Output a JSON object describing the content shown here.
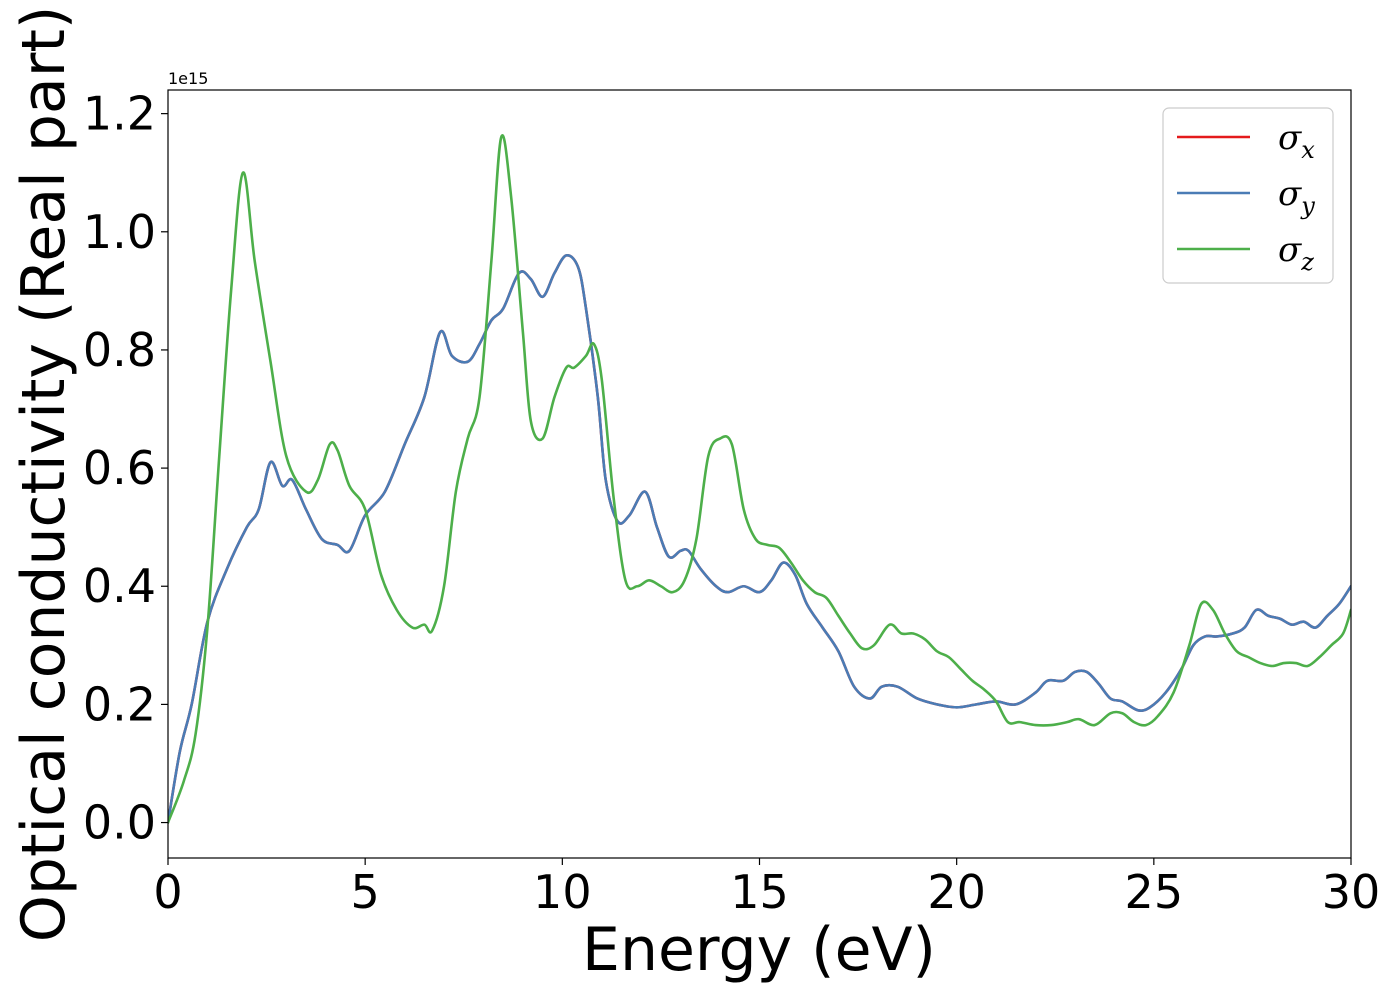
{
  "chart_data": {
    "type": "line",
    "xlabel": "Energy (eV)",
    "ylabel": "Optical conductivity (Real part)",
    "y_offset_text": "1e15",
    "xlim": [
      0,
      30
    ],
    "ylim": [
      -0.06,
      1.24
    ],
    "x_ticks": [
      0,
      5,
      10,
      15,
      20,
      25,
      30
    ],
    "x_tick_labels": [
      "0",
      "5",
      "10",
      "15",
      "20",
      "25",
      "30"
    ],
    "y_ticks": [
      0.0,
      0.2,
      0.4,
      0.6,
      0.8,
      1.0,
      1.2
    ],
    "y_tick_labels": [
      "0.0",
      "0.2",
      "0.4",
      "0.6",
      "0.8",
      "1.0",
      "1.2"
    ],
    "grid": false,
    "legend_position": "top-right",
    "series": [
      {
        "name": "σx",
        "legend_symbol": "σ",
        "legend_sub": "x",
        "color": "#e41a1c",
        "x": [
          0,
          0.3,
          0.6,
          1.0,
          1.5,
          2.0,
          2.3,
          2.6,
          2.9,
          3.15,
          3.5,
          3.9,
          4.3,
          4.6,
          5.0,
          5.5,
          6.0,
          6.5,
          6.9,
          7.2,
          7.6,
          7.9,
          8.2,
          8.5,
          8.9,
          9.2,
          9.5,
          9.8,
          10.1,
          10.4,
          10.6,
          10.9,
          11.1,
          11.4,
          11.7,
          12.1,
          12.4,
          12.7,
          13.0,
          13.2,
          13.5,
          13.9,
          14.2,
          14.6,
          15.0,
          15.3,
          15.6,
          15.9,
          16.2,
          16.6,
          17.0,
          17.4,
          17.8,
          18.1,
          18.5,
          19.0,
          19.5,
          20.0,
          20.5,
          21.0,
          21.5,
          22.0,
          22.3,
          22.7,
          23.0,
          23.3,
          23.6,
          23.9,
          24.2,
          24.6,
          24.9,
          25.3,
          25.7,
          26.0,
          26.3,
          26.6,
          27.0,
          27.3,
          27.6,
          27.9,
          28.2,
          28.5,
          28.8,
          29.1,
          29.4,
          29.7,
          30.0
        ],
        "values": [
          0.0,
          0.12,
          0.2,
          0.34,
          0.43,
          0.5,
          0.53,
          0.61,
          0.57,
          0.58,
          0.53,
          0.48,
          0.47,
          0.46,
          0.52,
          0.56,
          0.64,
          0.72,
          0.83,
          0.79,
          0.78,
          0.81,
          0.85,
          0.87,
          0.93,
          0.92,
          0.89,
          0.93,
          0.96,
          0.94,
          0.87,
          0.72,
          0.58,
          0.51,
          0.52,
          0.56,
          0.5,
          0.45,
          0.46,
          0.46,
          0.43,
          0.4,
          0.39,
          0.4,
          0.39,
          0.41,
          0.44,
          0.42,
          0.37,
          0.33,
          0.29,
          0.23,
          0.21,
          0.23,
          0.23,
          0.21,
          0.2,
          0.195,
          0.2,
          0.205,
          0.2,
          0.22,
          0.24,
          0.24,
          0.255,
          0.255,
          0.235,
          0.21,
          0.205,
          0.19,
          0.195,
          0.22,
          0.26,
          0.3,
          0.315,
          0.315,
          0.32,
          0.33,
          0.36,
          0.35,
          0.345,
          0.335,
          0.34,
          0.33,
          0.35,
          0.37,
          0.4
        ]
      },
      {
        "name": "σy",
        "legend_symbol": "σ",
        "legend_sub": "y",
        "color": "#4a7cb5",
        "x": [
          0,
          0.3,
          0.6,
          1.0,
          1.5,
          2.0,
          2.3,
          2.6,
          2.9,
          3.15,
          3.5,
          3.9,
          4.3,
          4.6,
          5.0,
          5.5,
          6.0,
          6.5,
          6.9,
          7.2,
          7.6,
          7.9,
          8.2,
          8.5,
          8.9,
          9.2,
          9.5,
          9.8,
          10.1,
          10.4,
          10.6,
          10.9,
          11.1,
          11.4,
          11.7,
          12.1,
          12.4,
          12.7,
          13.0,
          13.2,
          13.5,
          13.9,
          14.2,
          14.6,
          15.0,
          15.3,
          15.6,
          15.9,
          16.2,
          16.6,
          17.0,
          17.4,
          17.8,
          18.1,
          18.5,
          19.0,
          19.5,
          20.0,
          20.5,
          21.0,
          21.5,
          22.0,
          22.3,
          22.7,
          23.0,
          23.3,
          23.6,
          23.9,
          24.2,
          24.6,
          24.9,
          25.3,
          25.7,
          26.0,
          26.3,
          26.6,
          27.0,
          27.3,
          27.6,
          27.9,
          28.2,
          28.5,
          28.8,
          29.1,
          29.4,
          29.7,
          30.0
        ],
        "values": [
          0.0,
          0.12,
          0.2,
          0.34,
          0.43,
          0.5,
          0.53,
          0.61,
          0.57,
          0.58,
          0.53,
          0.48,
          0.47,
          0.46,
          0.52,
          0.56,
          0.64,
          0.72,
          0.83,
          0.79,
          0.78,
          0.81,
          0.85,
          0.87,
          0.93,
          0.92,
          0.89,
          0.93,
          0.96,
          0.94,
          0.87,
          0.72,
          0.58,
          0.51,
          0.52,
          0.56,
          0.5,
          0.45,
          0.46,
          0.46,
          0.43,
          0.4,
          0.39,
          0.4,
          0.39,
          0.41,
          0.44,
          0.42,
          0.37,
          0.33,
          0.29,
          0.23,
          0.21,
          0.23,
          0.23,
          0.21,
          0.2,
          0.195,
          0.2,
          0.205,
          0.2,
          0.22,
          0.24,
          0.24,
          0.255,
          0.255,
          0.235,
          0.21,
          0.205,
          0.19,
          0.195,
          0.22,
          0.26,
          0.3,
          0.315,
          0.315,
          0.32,
          0.33,
          0.36,
          0.35,
          0.345,
          0.335,
          0.34,
          0.33,
          0.35,
          0.37,
          0.4
        ]
      },
      {
        "name": "σz",
        "legend_symbol": "σ",
        "legend_sub": "z",
        "color": "#4daf4a",
        "x": [
          0,
          0.4,
          0.7,
          1.0,
          1.3,
          1.6,
          1.9,
          2.2,
          2.6,
          3.0,
          3.5,
          3.8,
          4.1,
          4.3,
          4.6,
          5.0,
          5.4,
          5.8,
          6.2,
          6.5,
          6.7,
          7.0,
          7.3,
          7.6,
          7.9,
          8.2,
          8.45,
          8.7,
          9.0,
          9.2,
          9.5,
          9.8,
          10.1,
          10.3,
          10.6,
          10.8,
          11.0,
          11.3,
          11.6,
          11.9,
          12.2,
          12.5,
          12.8,
          13.1,
          13.4,
          13.7,
          14.0,
          14.3,
          14.6,
          14.9,
          15.2,
          15.5,
          15.8,
          16.1,
          16.4,
          16.7,
          17.0,
          17.3,
          17.6,
          17.9,
          18.3,
          18.6,
          18.9,
          19.2,
          19.5,
          19.8,
          20.1,
          20.4,
          20.7,
          21.0,
          21.3,
          21.6,
          22.0,
          22.4,
          22.8,
          23.1,
          23.5,
          23.9,
          24.2,
          24.5,
          24.8,
          25.1,
          25.5,
          25.9,
          26.2,
          26.5,
          26.8,
          27.1,
          27.4,
          27.7,
          28.0,
          28.3,
          28.6,
          28.9,
          29.2,
          29.5,
          29.8,
          30.0
        ],
        "values": [
          0.0,
          0.07,
          0.15,
          0.33,
          0.62,
          0.9,
          1.1,
          0.95,
          0.78,
          0.62,
          0.56,
          0.58,
          0.64,
          0.63,
          0.57,
          0.53,
          0.42,
          0.36,
          0.33,
          0.335,
          0.325,
          0.4,
          0.56,
          0.65,
          0.72,
          0.95,
          1.16,
          1.06,
          0.83,
          0.68,
          0.65,
          0.72,
          0.77,
          0.77,
          0.79,
          0.81,
          0.75,
          0.55,
          0.41,
          0.4,
          0.41,
          0.4,
          0.39,
          0.41,
          0.48,
          0.62,
          0.65,
          0.64,
          0.53,
          0.48,
          0.47,
          0.465,
          0.44,
          0.41,
          0.39,
          0.38,
          0.35,
          0.32,
          0.295,
          0.3,
          0.335,
          0.32,
          0.32,
          0.31,
          0.29,
          0.28,
          0.26,
          0.24,
          0.225,
          0.205,
          0.17,
          0.17,
          0.165,
          0.165,
          0.17,
          0.175,
          0.165,
          0.185,
          0.185,
          0.17,
          0.165,
          0.18,
          0.22,
          0.3,
          0.37,
          0.36,
          0.32,
          0.29,
          0.28,
          0.27,
          0.265,
          0.27,
          0.27,
          0.265,
          0.28,
          0.3,
          0.32,
          0.36
        ]
      }
    ]
  }
}
